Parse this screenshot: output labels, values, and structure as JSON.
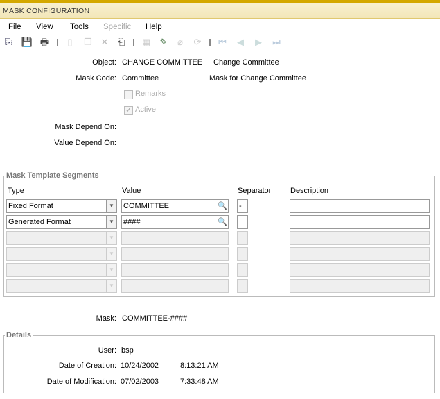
{
  "window": {
    "title": "MASK CONFIGURATION"
  },
  "menu": [
    "File",
    "View",
    "Tools",
    "Specific",
    "Help"
  ],
  "toolbar": [
    "rollback-icon",
    "save-icon",
    "print-icon",
    "new-record-icon",
    "copy-icon",
    "delete-icon",
    "export-icon",
    "query-icon",
    "edit-icon",
    "attachment-icon",
    "refresh-icon",
    "first-record-icon",
    "previous-record-icon",
    "next-record-icon",
    "last-record-icon"
  ],
  "header": {
    "object_label": "Object:",
    "object_code": "CHANGE COMMITTEE",
    "object_desc": "Change Committee",
    "mask_code_label": "Mask Code:",
    "mask_code": "Committee",
    "mask_desc": "Mask for Change Committee",
    "remarks_label": "Remarks",
    "remarks_checked": false,
    "active_label": "Active",
    "active_checked": true,
    "mask_depend_label": "Mask Depend On:",
    "value_depend_label": "Value Depend On:"
  },
  "segments": {
    "title": "Mask Template Segments",
    "columns": [
      "Type",
      "Value",
      "Separator",
      "Description"
    ],
    "rows": [
      {
        "type": "Fixed Format",
        "value": "COMMITTEE",
        "separator": "-",
        "description": ""
      },
      {
        "type": "Generated Format",
        "value": "####",
        "separator": "",
        "description": ""
      },
      {
        "type": "",
        "value": "",
        "separator": "",
        "description": ""
      },
      {
        "type": "",
        "value": "",
        "separator": "",
        "description": ""
      },
      {
        "type": "",
        "value": "",
        "separator": "",
        "description": ""
      },
      {
        "type": "",
        "value": "",
        "separator": "",
        "description": ""
      }
    ]
  },
  "mask": {
    "label": "Mask:",
    "value": "COMMITTEE-####"
  },
  "details": {
    "title": "Details",
    "user_label": "User:",
    "user": "bsp",
    "creation_label": "Date of Creation:",
    "creation_date": "10/24/2002",
    "creation_time": "8:13:21 AM",
    "modification_label": "Date of Modification:",
    "modification_date": "07/02/2003",
    "modification_time": "7:33:48 AM"
  }
}
